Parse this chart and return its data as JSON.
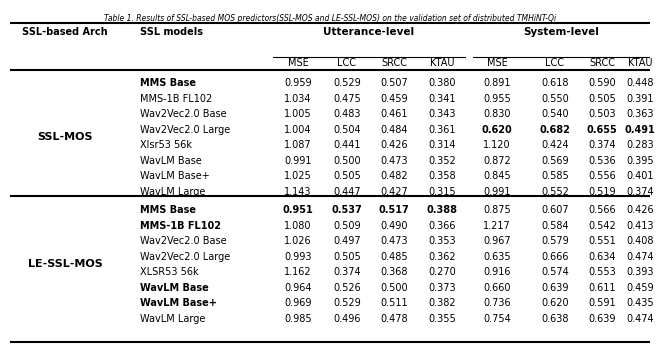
{
  "title": "Table 1. Results of SSL-based MOS predictors(SSL-MOS and LE-SSL-MOS) on the validation set of distributed TMHiNT-Qi",
  "ssl_mos_rows": [
    {
      "model": "MMS Base",
      "bold_model": true,
      "vals": [
        "0.959",
        "0.529",
        "0.507",
        "0.380",
        "0.891",
        "0.618",
        "0.590",
        "0.448"
      ],
      "bold_vals": [
        false,
        false,
        false,
        false,
        false,
        false,
        false,
        false
      ]
    },
    {
      "model": "MMS-1B FL102",
      "bold_model": false,
      "vals": [
        "1.034",
        "0.475",
        "0.459",
        "0.341",
        "0.955",
        "0.550",
        "0.505",
        "0.391"
      ],
      "bold_vals": [
        false,
        false,
        false,
        false,
        false,
        false,
        false,
        false
      ]
    },
    {
      "model": "Wav2Vec2.0 Base",
      "bold_model": false,
      "vals": [
        "1.005",
        "0.483",
        "0.461",
        "0.343",
        "0.830",
        "0.540",
        "0.503",
        "0.363"
      ],
      "bold_vals": [
        false,
        false,
        false,
        false,
        false,
        false,
        false,
        false
      ]
    },
    {
      "model": "Wav2Vec2.0 Large",
      "bold_model": false,
      "vals": [
        "1.004",
        "0.504",
        "0.484",
        "0.361",
        "0.620",
        "0.682",
        "0.655",
        "0.491"
      ],
      "bold_vals": [
        false,
        false,
        false,
        false,
        true,
        true,
        true,
        true
      ]
    },
    {
      "model": "Xlsr53 56k",
      "bold_model": false,
      "vals": [
        "1.087",
        "0.441",
        "0.426",
        "0.314",
        "1.120",
        "0.424",
        "0.374",
        "0.283"
      ],
      "bold_vals": [
        false,
        false,
        false,
        false,
        false,
        false,
        false,
        false
      ]
    },
    {
      "model": "WavLM Base",
      "bold_model": false,
      "vals": [
        "0.991",
        "0.500",
        "0.473",
        "0.352",
        "0.872",
        "0.569",
        "0.536",
        "0.395"
      ],
      "bold_vals": [
        false,
        false,
        false,
        false,
        false,
        false,
        false,
        false
      ]
    },
    {
      "model": "WavLM Base+",
      "bold_model": false,
      "vals": [
        "1.025",
        "0.505",
        "0.482",
        "0.358",
        "0.845",
        "0.585",
        "0.556",
        "0.401"
      ],
      "bold_vals": [
        false,
        false,
        false,
        false,
        false,
        false,
        false,
        false
      ]
    },
    {
      "model": "WavLM Large",
      "bold_model": false,
      "vals": [
        "1.143",
        "0.447",
        "0.427",
        "0.315",
        "0.991",
        "0.552",
        "0.519",
        "0.374"
      ],
      "bold_vals": [
        false,
        false,
        false,
        false,
        false,
        false,
        false,
        false
      ]
    }
  ],
  "le_ssl_mos_rows": [
    {
      "model": "MMS Base",
      "bold_model": true,
      "vals": [
        "0.951",
        "0.537",
        "0.517",
        "0.388",
        "0.875",
        "0.607",
        "0.566",
        "0.426"
      ],
      "bold_vals": [
        true,
        true,
        true,
        true,
        false,
        false,
        false,
        false
      ]
    },
    {
      "model": "MMS-1B FL102",
      "bold_model": true,
      "vals": [
        "1.080",
        "0.509",
        "0.490",
        "0.366",
        "1.217",
        "0.584",
        "0.542",
        "0.413"
      ],
      "bold_vals": [
        false,
        false,
        false,
        false,
        false,
        false,
        false,
        false
      ]
    },
    {
      "model": "Wav2Vec2.0 Base",
      "bold_model": false,
      "vals": [
        "1.026",
        "0.497",
        "0.473",
        "0.353",
        "0.967",
        "0.579",
        "0.551",
        "0.408"
      ],
      "bold_vals": [
        false,
        false,
        false,
        false,
        false,
        false,
        false,
        false
      ]
    },
    {
      "model": "Wav2Vec2.0 Large",
      "bold_model": false,
      "vals": [
        "0.993",
        "0.505",
        "0.485",
        "0.362",
        "0.635",
        "0.666",
        "0.634",
        "0.474"
      ],
      "bold_vals": [
        false,
        false,
        false,
        false,
        false,
        false,
        false,
        false
      ]
    },
    {
      "model": "XLSR53 56k",
      "bold_model": false,
      "vals": [
        "1.162",
        "0.374",
        "0.368",
        "0.270",
        "0.916",
        "0.574",
        "0.553",
        "0.393"
      ],
      "bold_vals": [
        false,
        false,
        false,
        false,
        false,
        false,
        false,
        false
      ]
    },
    {
      "model": "WavLM Base",
      "bold_model": true,
      "vals": [
        "0.964",
        "0.526",
        "0.500",
        "0.373",
        "0.660",
        "0.639",
        "0.611",
        "0.459"
      ],
      "bold_vals": [
        false,
        false,
        false,
        false,
        false,
        false,
        false,
        false
      ]
    },
    {
      "model": "WavLM Base+",
      "bold_model": true,
      "vals": [
        "0.969",
        "0.529",
        "0.511",
        "0.382",
        "0.736",
        "0.620",
        "0.591",
        "0.435"
      ],
      "bold_vals": [
        false,
        false,
        false,
        false,
        false,
        false,
        false,
        false
      ]
    },
    {
      "model": "WavLM Large",
      "bold_model": false,
      "vals": [
        "0.985",
        "0.496",
        "0.478",
        "0.355",
        "0.754",
        "0.638",
        "0.639",
        "0.474"
      ],
      "bold_vals": [
        false,
        false,
        false,
        false,
        false,
        false,
        false,
        false
      ]
    }
  ],
  "background_color": "#ffffff",
  "text_color": "#000000",
  "font_size": 7.0,
  "title_font_size": 5.5,
  "arch_font_size": 8.0
}
